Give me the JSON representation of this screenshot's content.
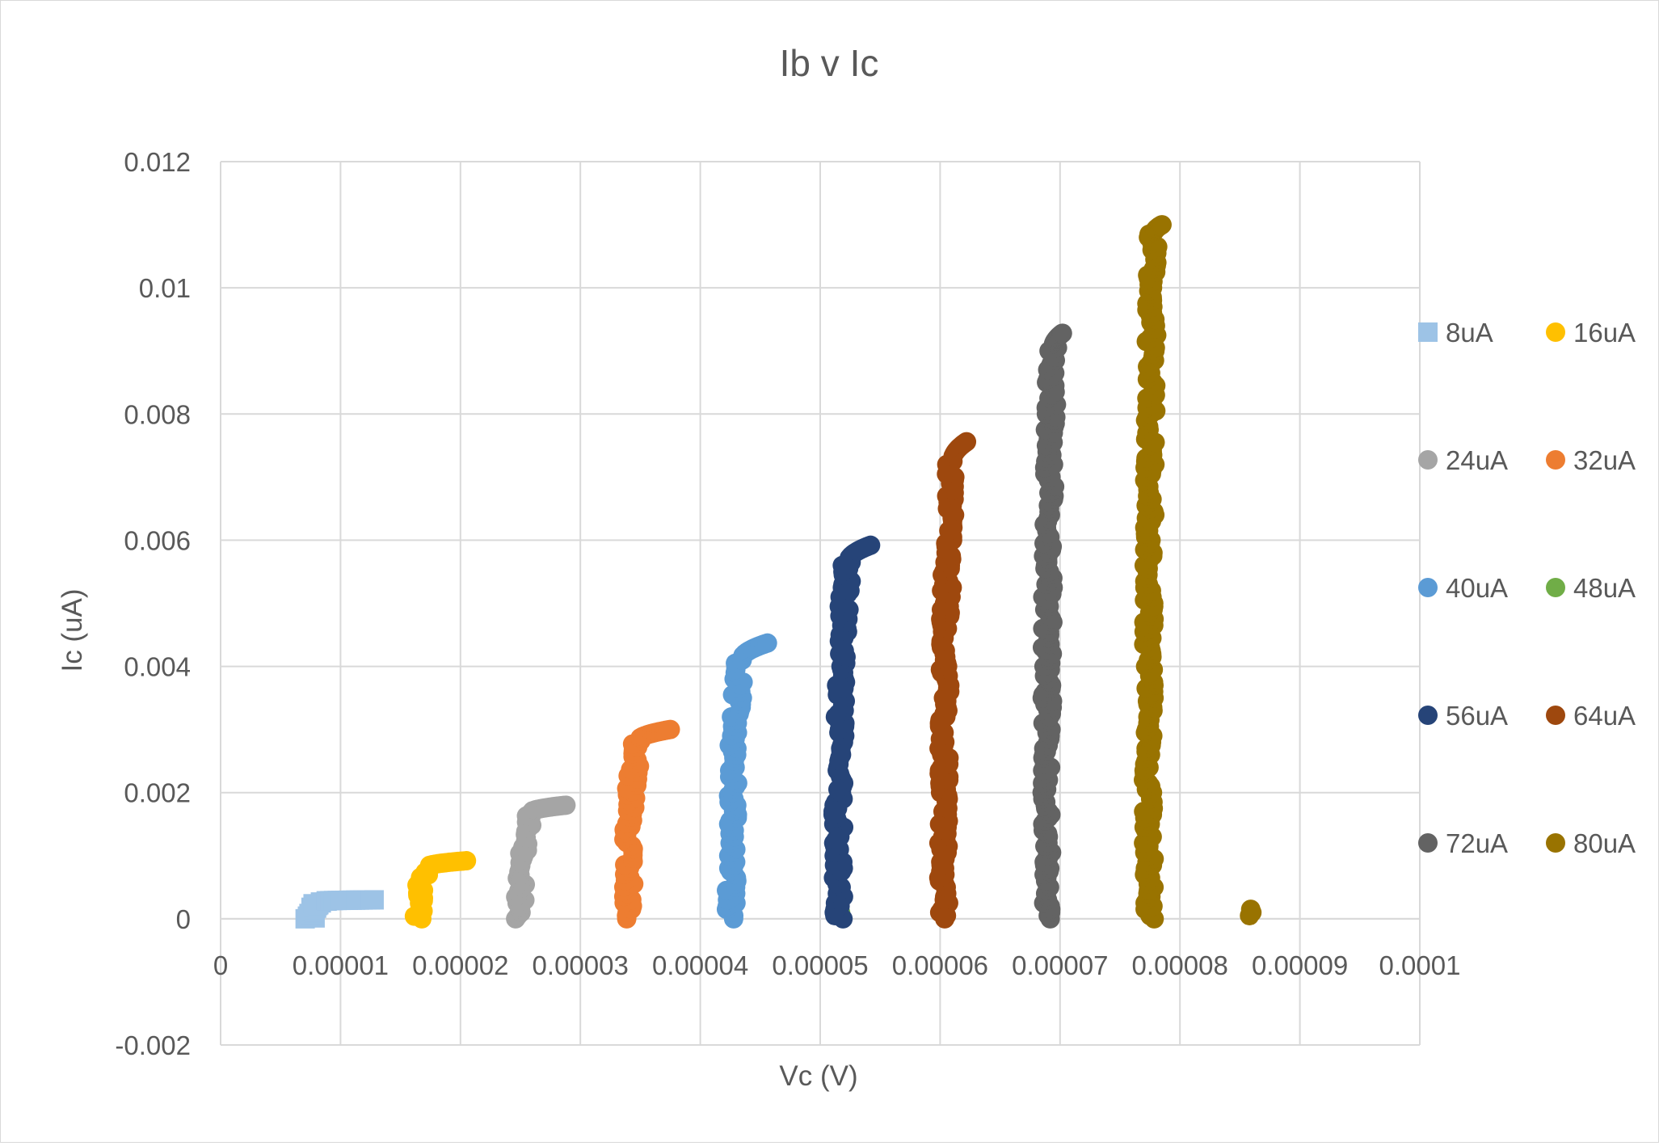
{
  "chart_data": {
    "type": "scatter",
    "title": "Ib v Ic",
    "xlabel": "Vc (V)",
    "ylabel": "Ic (uA)",
    "xlim": [
      0,
      0.0001
    ],
    "ylim": [
      -0.002,
      0.012
    ],
    "x_ticks": [
      "0",
      "0.00001",
      "0.00002",
      "0.00003",
      "0.00004",
      "0.00005",
      "0.00006",
      "0.00007",
      "0.00008",
      "0.00009",
      "0.0001"
    ],
    "x_tick_values": [
      0,
      1e-05,
      2e-05,
      3e-05,
      4e-05,
      5e-05,
      6e-05,
      7e-05,
      8e-05,
      9e-05,
      0.0001
    ],
    "y_ticks": [
      "-0.002",
      "0",
      "0.002",
      "0.004",
      "0.006",
      "0.008",
      "0.01",
      "0.012"
    ],
    "y_tick_values": [
      -0.002,
      0,
      0.002,
      0.004,
      0.006,
      0.008,
      0.01,
      0.012
    ],
    "grid": true,
    "legend_position": "right",
    "series": [
      {
        "name": "8uA",
        "color": "#9dc3e6",
        "marker": "square",
        "x_rise": 7.5e-06,
        "x_knee": 8.5e-06,
        "x_end": 1.28e-05,
        "y_knee": 0.00028,
        "y_end": 0.0003,
        "x_rise_points": [
          7.8e-06,
          8.2e-06,
          8.6e-06,
          7.6e-06
        ]
      },
      {
        "name": "16uA",
        "color": "#ffc000",
        "marker": "circle",
        "x_rise": 1.65e-05,
        "x_knee": 1.72e-05,
        "x_end": 2.05e-05,
        "y_knee": 0.00082,
        "y_end": 0.00092
      },
      {
        "name": "24uA",
        "color": "#a5a5a5",
        "marker": "circle",
        "x_rise": 2.5e-05,
        "x_knee": 2.58e-05,
        "x_end": 2.88e-05,
        "y_knee": 0.00168,
        "y_end": 0.0018
      },
      {
        "name": "32uA",
        "color": "#ed7d31",
        "marker": "circle",
        "x_rise": 3.4e-05,
        "x_knee": 3.48e-05,
        "x_end": 3.75e-05,
        "y_knee": 0.00282,
        "y_end": 0.003
      },
      {
        "name": "40uA",
        "color": "#5b9bd5",
        "marker": "circle",
        "x_rise": 4.26e-05,
        "x_knee": 4.34e-05,
        "x_end": 4.56e-05,
        "y_knee": 0.0041,
        "y_end": 0.00437
      },
      {
        "name": "48uA",
        "color": "#70ad47",
        "marker": "circle",
        "points": [
          [
            5.16e-05,
            5e-05
          ],
          [
            5.17e-05,
            0.0001
          ]
        ]
      },
      {
        "name": "56uA",
        "color": "#264478",
        "marker": "circle",
        "x_rise": 5.15e-05,
        "x_knee": 5.23e-05,
        "x_end": 5.42e-05,
        "y_knee": 0.00565,
        "y_end": 0.00592
      },
      {
        "name": "64uA",
        "color": "#9e480e",
        "marker": "circle",
        "x_rise": 6.03e-05,
        "x_knee": 6.1e-05,
        "x_end": 6.22e-05,
        "y_knee": 0.00725,
        "y_end": 0.00756
      },
      {
        "name": "72uA",
        "color": "#636363",
        "marker": "circle",
        "x_rise": 6.89e-05,
        "x_knee": 6.94e-05,
        "x_end": 7.02e-05,
        "y_knee": 0.00905,
        "y_end": 0.00928
      },
      {
        "name": "80uA",
        "color": "#997300",
        "marker": "circle",
        "x_rise": 7.74e-05,
        "x_knee": 7.78e-05,
        "x_end": 7.85e-05,
        "y_knee": 0.01085,
        "y_end": 0.011,
        "extra_points": [
          [
            8.58e-05,
            5e-05
          ],
          [
            8.59e-05,
            0.00015
          ],
          [
            8.6e-05,
            0.0001
          ]
        ]
      }
    ]
  }
}
